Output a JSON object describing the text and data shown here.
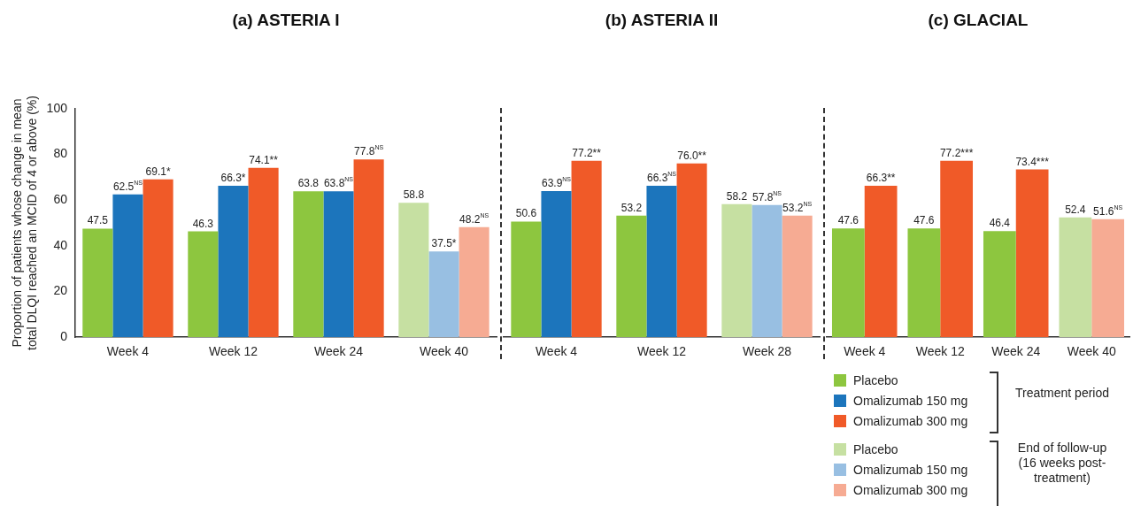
{
  "chart_data": [
    {
      "type": "bar",
      "title": "(a) ASTERIA I",
      "ylabel": "Proportion of patients whose change in mean total DLQI reached an MCID of 4 or above (%)",
      "categories": [
        "Week 4",
        "Week 12",
        "Week 24",
        "Week 40"
      ],
      "ylim": [
        0,
        100
      ],
      "yticks": [
        0,
        20,
        40,
        60,
        80,
        100
      ],
      "data_labels": true,
      "series": [
        {
          "colors": [
            "#8dc63f",
            "#8dc63f",
            "#8dc63f",
            "#c6e0a2"
          ],
          "values": [
            47.5,
            46.3,
            63.8,
            58.8
          ],
          "value_labels": [
            "47.5",
            "46.3",
            "63.8",
            "58.8"
          ]
        },
        {
          "colors": [
            "#1c75bc",
            "#1c75bc",
            "#1c75bc",
            "#98bfe2"
          ],
          "values": [
            62.5,
            66.3,
            63.8,
            37.5
          ],
          "value_labels": [
            "62.5$^{NS}$",
            "66.3*",
            "63.8$^{NS}$",
            "37.5*"
          ]
        },
        {
          "colors": [
            "#f05a28",
            "#f05a28",
            "#f05a28",
            "#f6ab93"
          ],
          "values": [
            69.1,
            74.1,
            77.8,
            48.2
          ],
          "value_labels": [
            "69.1*",
            "74.1**",
            "77.8$^{NS}$",
            "48.2$^{NS}$"
          ]
        }
      ]
    },
    {
      "type": "bar",
      "title": "(b) ASTERIA II",
      "categories": [
        "Week 4",
        "Week 12",
        "Week 28"
      ],
      "ylim": [
        0,
        100
      ],
      "tick_labels": "x",
      "data_labels": true,
      "series": [
        {
          "colors": [
            "#8dc63f",
            "#8dc63f",
            "#c6e0a2"
          ],
          "values": [
            50.6,
            53.2,
            58.2
          ],
          "value_labels": [
            "50.6",
            "53.2",
            "58.2"
          ]
        },
        {
          "colors": [
            "#1c75bc",
            "#1c75bc",
            "#98bfe2"
          ],
          "values": [
            63.9,
            66.3,
            57.8
          ],
          "value_labels": [
            "63.9$^{NS}$",
            "66.3$^{NS}$",
            "57.8$^{NS}$"
          ]
        },
        {
          "colors": [
            "#f05a28",
            "#f05a28",
            "#f6ab93"
          ],
          "values": [
            77.2,
            76.0,
            53.2
          ],
          "value_labels": [
            "77.2**",
            "76.0**",
            "53.2$^{NS}$"
          ]
        }
      ]
    },
    {
      "type": "bar",
      "title": "(c) GLACIAL",
      "categories": [
        "Week 4",
        "Week 12",
        "Week 24",
        "Week 40"
      ],
      "ylim": [
        0,
        100
      ],
      "tick_labels": "x",
      "data_labels": true,
      "legend": "bottom",
      "annotations": [
        "Treatment period",
        "End of follow-up (16 weeks post-treatment)"
      ],
      "series": [
        {
          "name": "Placebo",
          "color": "#8dc63f",
          "colors": [
            "#8dc63f",
            "#8dc63f",
            "#8dc63f",
            "#c6e0a2"
          ],
          "values": [
            47.6,
            47.6,
            46.4,
            52.4
          ],
          "value_labels": [
            "47.6",
            "47.6",
            "46.4",
            "52.4"
          ]
        },
        {
          "name": "Omalizumab 150 mg",
          "color": "#1c75bc",
          "colors": [
            "#1c75bc",
            "#1c75bc",
            "#1c75bc",
            "#98bfe2"
          ],
          "values": [
            null,
            null,
            null,
            null
          ]
        },
        {
          "name": "Omalizumab 300 mg",
          "color": "#f05a28",
          "colors": [
            "#f05a28",
            "#f05a28",
            "#f05a28",
            "#f6ab93"
          ],
          "values": [
            66.3,
            77.2,
            73.4,
            51.6
          ],
          "value_labels": [
            "66.3**",
            "77.2***",
            "73.4***",
            "51.6$^{NS}$"
          ]
        }
      ]
    }
  ]
}
